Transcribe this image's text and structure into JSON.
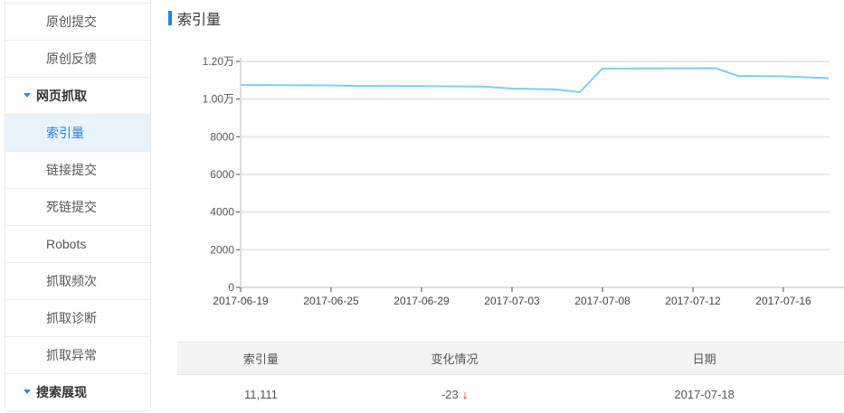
{
  "sidebar": {
    "items": [
      {
        "label": "",
        "type": "item"
      },
      {
        "label": "原创提交",
        "type": "item"
      },
      {
        "label": "原创反馈",
        "type": "item"
      },
      {
        "label": "网页抓取",
        "type": "group"
      },
      {
        "label": "索引量",
        "type": "item",
        "active": true
      },
      {
        "label": "链接提交",
        "type": "item"
      },
      {
        "label": "死链提交",
        "type": "item"
      },
      {
        "label": "Robots",
        "type": "item"
      },
      {
        "label": "抓取频次",
        "type": "item"
      },
      {
        "label": "抓取诊断",
        "type": "item"
      },
      {
        "label": "抓取异常",
        "type": "item"
      },
      {
        "label": "搜索展现",
        "type": "group"
      }
    ]
  },
  "page": {
    "title": "索引量"
  },
  "colors": {
    "accent": "#1e88e5",
    "line": "#7ccdf4",
    "grid": "#e8e8e8",
    "down": "#e00000"
  },
  "chart_data": {
    "type": "line",
    "title": "索引量",
    "xlabel": "",
    "ylabel": "",
    "ylim": [
      0,
      12000
    ],
    "y_ticks": [
      "0",
      "2000",
      "4000",
      "6000",
      "8000",
      "1.00万",
      "1.20万"
    ],
    "y_tick_values": [
      0,
      2000,
      4000,
      6000,
      8000,
      10000,
      12000
    ],
    "x_ticks": [
      "2017-06-19",
      "2017-06-25",
      "2017-06-29",
      "2017-07-03",
      "2017-07-08",
      "2017-07-12",
      "2017-07-16"
    ],
    "grid": true,
    "series": [
      {
        "name": "索引量",
        "x_frac": [
          0,
          0.154,
          0.2,
          0.308,
          0.415,
          0.462,
          0.538,
          0.577,
          0.615,
          0.808,
          0.846,
          0.923,
          1.0
        ],
        "values": [
          10750,
          10730,
          10700,
          10690,
          10660,
          10560,
          10510,
          10370,
          11620,
          11640,
          11230,
          11210,
          11111
        ]
      }
    ]
  },
  "table": {
    "headers": [
      "索引量",
      "变化情况",
      "日期"
    ],
    "rows": [
      {
        "count": "11,111",
        "change": "-23",
        "change_dir": "↓",
        "date": "2017-07-18"
      }
    ]
  }
}
